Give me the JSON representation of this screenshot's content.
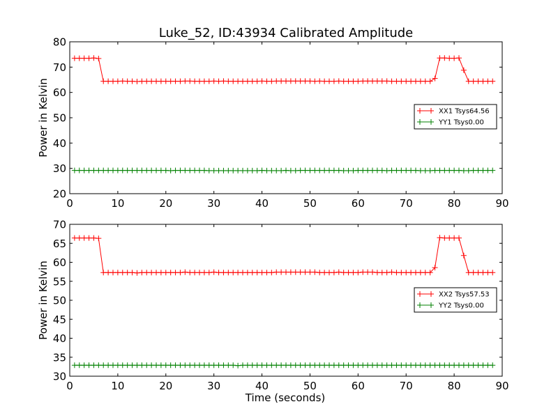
{
  "figure": {
    "title": "Luke_52, ID:43934 Calibrated Amplitude",
    "xlabel": "Time (seconds)",
    "background": "#ffffff"
  },
  "colors": {
    "xx": "#ff0000",
    "yy": "#008000"
  },
  "chart_data": [
    {
      "type": "line",
      "ylabel": "Power in Kelvin",
      "xlim": [
        0,
        90
      ],
      "ylim": [
        20,
        80
      ],
      "xticks": [
        0,
        10,
        20,
        30,
        40,
        50,
        60,
        70,
        80,
        90
      ],
      "yticks": [
        20,
        30,
        40,
        50,
        60,
        70,
        80
      ],
      "legend_position": "right",
      "grid": false,
      "x": [
        1,
        2,
        3,
        4,
        5,
        6,
        7,
        8,
        9,
        10,
        11,
        12,
        13,
        14,
        15,
        16,
        17,
        18,
        19,
        20,
        21,
        22,
        23,
        24,
        25,
        26,
        27,
        28,
        29,
        30,
        31,
        32,
        33,
        34,
        35,
        36,
        37,
        38,
        39,
        40,
        41,
        42,
        43,
        44,
        45,
        46,
        47,
        48,
        49,
        50,
        51,
        52,
        53,
        54,
        55,
        56,
        57,
        58,
        59,
        60,
        61,
        62,
        63,
        64,
        65,
        66,
        67,
        68,
        69,
        70,
        71,
        72,
        73,
        74,
        75,
        76,
        77,
        78,
        79,
        80,
        81,
        82,
        83,
        84,
        85,
        86,
        87,
        88
      ],
      "series": [
        {
          "name": "XX1 Tsys64.56",
          "color": "#ff0000",
          "values": [
            73.5,
            73.5,
            73.5,
            73.5,
            73.6,
            73.4,
            64.4,
            64.4,
            64.4,
            64.4,
            64.5,
            64.4,
            64.4,
            64.3,
            64.4,
            64.4,
            64.4,
            64.4,
            64.4,
            64.4,
            64.4,
            64.4,
            64.4,
            64.5,
            64.5,
            64.4,
            64.4,
            64.4,
            64.4,
            64.5,
            64.4,
            64.5,
            64.4,
            64.4,
            64.4,
            64.4,
            64.4,
            64.4,
            64.4,
            64.5,
            64.4,
            64.4,
            64.5,
            64.5,
            64.5,
            64.5,
            64.5,
            64.5,
            64.5,
            64.5,
            64.4,
            64.5,
            64.4,
            64.4,
            64.4,
            64.5,
            64.4,
            64.4,
            64.4,
            64.4,
            64.5,
            64.5,
            64.5,
            64.5,
            64.5,
            64.5,
            64.4,
            64.4,
            64.4,
            64.4,
            64.4,
            64.4,
            64.4,
            64.4,
            64.4,
            65.5,
            73.6,
            73.6,
            73.5,
            73.5,
            73.6,
            68.8,
            64.4,
            64.4,
            64.4,
            64.4,
            64.4,
            64.4
          ]
        },
        {
          "name": "YY1 Tsys0.00",
          "color": "#008000",
          "values": [
            29.2,
            29.2,
            29.2,
            29.2,
            29.2,
            29.2,
            29.2,
            29.2,
            29.2,
            29.2,
            29.2,
            29.2,
            29.2,
            29.2,
            29.2,
            29.2,
            29.2,
            29.2,
            29.2,
            29.2,
            29.1,
            29.2,
            29.2,
            29.2,
            29.2,
            29.2,
            29.2,
            29.2,
            29.1,
            29.1,
            29.1,
            29.1,
            29.1,
            29.1,
            29.1,
            29.1,
            29.1,
            29.1,
            29.1,
            29.2,
            29.1,
            29.1,
            29.1,
            29.1,
            29.2,
            29.1,
            29.1,
            29.2,
            29.2,
            29.2,
            29.2,
            29.2,
            29.2,
            29.2,
            29.2,
            29.2,
            29.1,
            29.1,
            29.1,
            29.2,
            29.2,
            29.2,
            29.2,
            29.2,
            29.2,
            29.1,
            29.2,
            29.2,
            29.2,
            29.2,
            29.2,
            29.2,
            29.1,
            29.1,
            29.1,
            29.2,
            29.2,
            29.2,
            29.2,
            29.2,
            29.2,
            29.1,
            29.1,
            29.2,
            29.2,
            29.2,
            29.2,
            29.2
          ]
        }
      ]
    },
    {
      "type": "line",
      "ylabel": "Power in Kelvin",
      "xlim": [
        0,
        90
      ],
      "ylim": [
        30,
        70
      ],
      "xticks": [
        0,
        10,
        20,
        30,
        40,
        50,
        60,
        70,
        80,
        90
      ],
      "yticks": [
        30,
        35,
        40,
        45,
        50,
        55,
        60,
        65,
        70
      ],
      "legend_position": "right",
      "grid": false,
      "x": [
        1,
        2,
        3,
        4,
        5,
        6,
        7,
        8,
        9,
        10,
        11,
        12,
        13,
        14,
        15,
        16,
        17,
        18,
        19,
        20,
        21,
        22,
        23,
        24,
        25,
        26,
        27,
        28,
        29,
        30,
        31,
        32,
        33,
        34,
        35,
        36,
        37,
        38,
        39,
        40,
        41,
        42,
        43,
        44,
        45,
        46,
        47,
        48,
        49,
        50,
        51,
        52,
        53,
        54,
        55,
        56,
        57,
        58,
        59,
        60,
        61,
        62,
        63,
        64,
        65,
        66,
        67,
        68,
        69,
        70,
        71,
        72,
        73,
        74,
        75,
        76,
        77,
        78,
        79,
        80,
        81,
        82,
        83,
        84,
        85,
        86,
        87,
        88
      ],
      "series": [
        {
          "name": "XX2 Tsys57.53",
          "color": "#ff0000",
          "values": [
            66.4,
            66.4,
            66.4,
            66.4,
            66.4,
            66.3,
            57.3,
            57.3,
            57.3,
            57.3,
            57.3,
            57.3,
            57.3,
            57.2,
            57.3,
            57.3,
            57.3,
            57.3,
            57.3,
            57.3,
            57.3,
            57.3,
            57.3,
            57.4,
            57.3,
            57.3,
            57.3,
            57.3,
            57.3,
            57.4,
            57.3,
            57.3,
            57.3,
            57.3,
            57.3,
            57.3,
            57.3,
            57.3,
            57.3,
            57.3,
            57.3,
            57.3,
            57.4,
            57.4,
            57.4,
            57.4,
            57.4,
            57.4,
            57.4,
            57.4,
            57.4,
            57.3,
            57.3,
            57.3,
            57.3,
            57.4,
            57.3,
            57.3,
            57.3,
            57.3,
            57.4,
            57.4,
            57.4,
            57.3,
            57.3,
            57.3,
            57.4,
            57.3,
            57.3,
            57.3,
            57.3,
            57.3,
            57.3,
            57.3,
            57.3,
            58.6,
            66.5,
            66.4,
            66.4,
            66.4,
            66.4,
            61.8,
            57.3,
            57.3,
            57.3,
            57.3,
            57.3,
            57.3
          ]
        },
        {
          "name": "YY2 Tsys0.00",
          "color": "#008000",
          "values": [
            32.9,
            32.9,
            32.9,
            32.9,
            32.9,
            32.9,
            32.9,
            32.9,
            32.9,
            32.9,
            32.9,
            32.9,
            32.9,
            32.9,
            32.9,
            32.9,
            32.9,
            32.9,
            32.9,
            32.9,
            32.9,
            32.9,
            32.9,
            32.9,
            32.9,
            32.9,
            32.9,
            32.9,
            32.9,
            32.9,
            32.9,
            32.9,
            32.9,
            32.9,
            32.8,
            32.9,
            32.9,
            32.9,
            32.9,
            32.9,
            32.9,
            32.9,
            32.9,
            32.9,
            32.9,
            32.9,
            32.9,
            32.9,
            32.9,
            32.9,
            32.9,
            32.9,
            32.9,
            32.9,
            32.9,
            32.9,
            32.9,
            32.9,
            32.9,
            32.9,
            32.9,
            32.9,
            32.9,
            32.9,
            32.9,
            32.9,
            32.9,
            32.9,
            32.9,
            32.9,
            32.9,
            32.9,
            32.9,
            32.9,
            32.9,
            32.9,
            32.9,
            32.9,
            32.9,
            32.9,
            32.9,
            32.9,
            32.9,
            32.9,
            32.9,
            32.9,
            32.9,
            32.9
          ]
        }
      ]
    }
  ]
}
